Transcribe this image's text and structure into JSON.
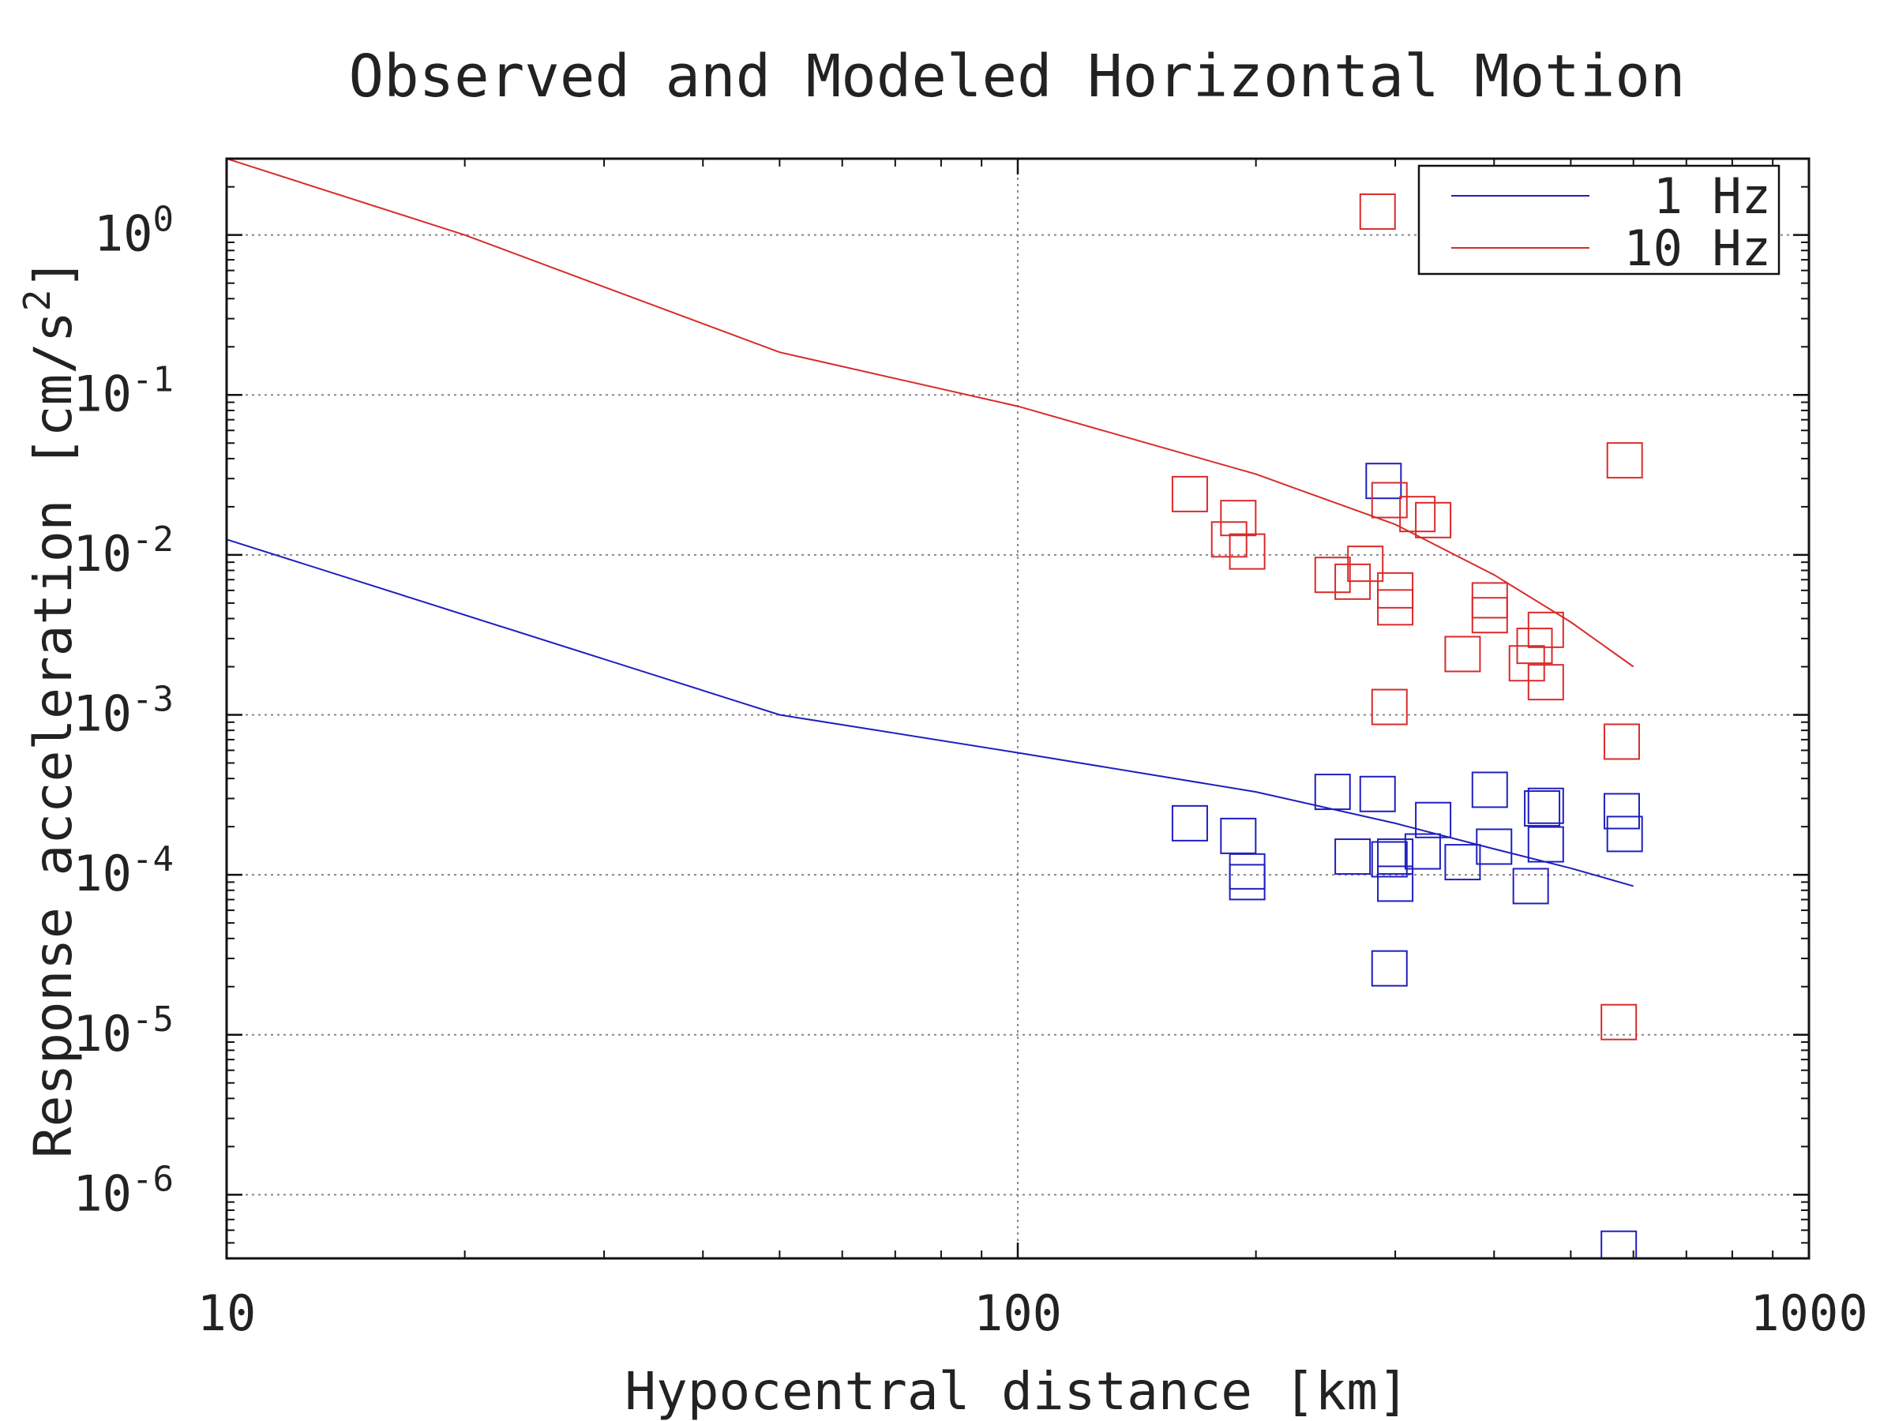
{
  "chart_data": {
    "type": "scatter",
    "title": "Observed and Modeled Horizontal Motion",
    "xlabel": "Hypocentral distance [km]",
    "ylabel_parts": [
      "Response acceleration [cm/s",
      "2",
      "]"
    ],
    "x_scale": "log",
    "y_scale": "log",
    "xlim": [
      10,
      1000
    ],
    "ylim": [
      4e-07,
      3
    ],
    "x_ticks": [
      {
        "value": 10,
        "label": "10"
      },
      {
        "value": 100,
        "label": "100"
      },
      {
        "value": 1000,
        "label": "1000"
      }
    ],
    "y_ticks": [
      {
        "value": 1,
        "base": "10",
        "exp": "0"
      },
      {
        "value": 0.1,
        "base": "10",
        "exp": "-1"
      },
      {
        "value": 0.01,
        "base": "10",
        "exp": "-2"
      },
      {
        "value": 0.001,
        "base": "10",
        "exp": "-3"
      },
      {
        "value": 0.0001,
        "base": "10",
        "exp": "-4"
      },
      {
        "value": 1e-05,
        "base": "10",
        "exp": "-5"
      },
      {
        "value": 1e-06,
        "base": "10",
        "exp": "-6"
      }
    ],
    "grid": true,
    "legend": {
      "position": "top-right",
      "entries": [
        {
          "label": "1 Hz",
          "color": "#1f1fbf"
        },
        {
          "label": "10 Hz",
          "color": "#d92b2b"
        }
      ]
    },
    "series": [
      {
        "name": "1 Hz",
        "color": "#1f1fbf",
        "model": {
          "x": [
            10,
            50,
            100,
            200,
            300,
            400,
            500,
            600
          ],
          "y": [
            0.0125,
            0.001,
            0.00058,
            0.00033,
            0.00021,
            0.000145,
            0.00011,
            8.5e-05
          ]
        },
        "observed": {
          "x": [
            165,
            190,
            195,
            195,
            250,
            265,
            285,
            290,
            295,
            295,
            300,
            300,
            325,
            335,
            365,
            395,
            400,
            445,
            460,
            465,
            465,
            580,
            585,
            575
          ],
          "y": [
            0.00021,
            0.000175,
            0.000105,
            9e-05,
            0.00033,
            0.00013,
            0.00032,
            0.029,
            0.000125,
            2.6e-05,
            0.00013,
            8.8e-05,
            0.00014,
            0.00022,
            0.00012,
            0.00034,
            0.00015,
            8.5e-05,
            0.00026,
            0.00027,
            0.000155,
            0.00025,
            0.00018,
            4.6e-07
          ]
        }
      },
      {
        "name": "10 Hz",
        "color": "#d92b2b",
        "model": {
          "x": [
            10,
            20,
            50,
            100,
            150,
            200,
            300,
            400,
            500,
            600
          ],
          "y": [
            3.0,
            1.0,
            0.185,
            0.085,
            0.048,
            0.032,
            0.0155,
            0.0075,
            0.0038,
            0.002
          ]
        },
        "observed": {
          "x": [
            285,
            165,
            190,
            185,
            195,
            250,
            265,
            275,
            295,
            300,
            300,
            320,
            335,
            365,
            395,
            395,
            440,
            450,
            465,
            465,
            585,
            580,
            575,
            295
          ],
          "y": [
            1.4,
            0.024,
            0.017,
            0.0125,
            0.0105,
            0.0075,
            0.0068,
            0.0088,
            0.022,
            0.006,
            0.0047,
            0.018,
            0.0165,
            0.0024,
            0.0052,
            0.0042,
            0.0021,
            0.0027,
            0.0034,
            0.0016,
            0.039,
            0.00068,
            1.2e-05,
            0.00112
          ]
        }
      }
    ]
  }
}
